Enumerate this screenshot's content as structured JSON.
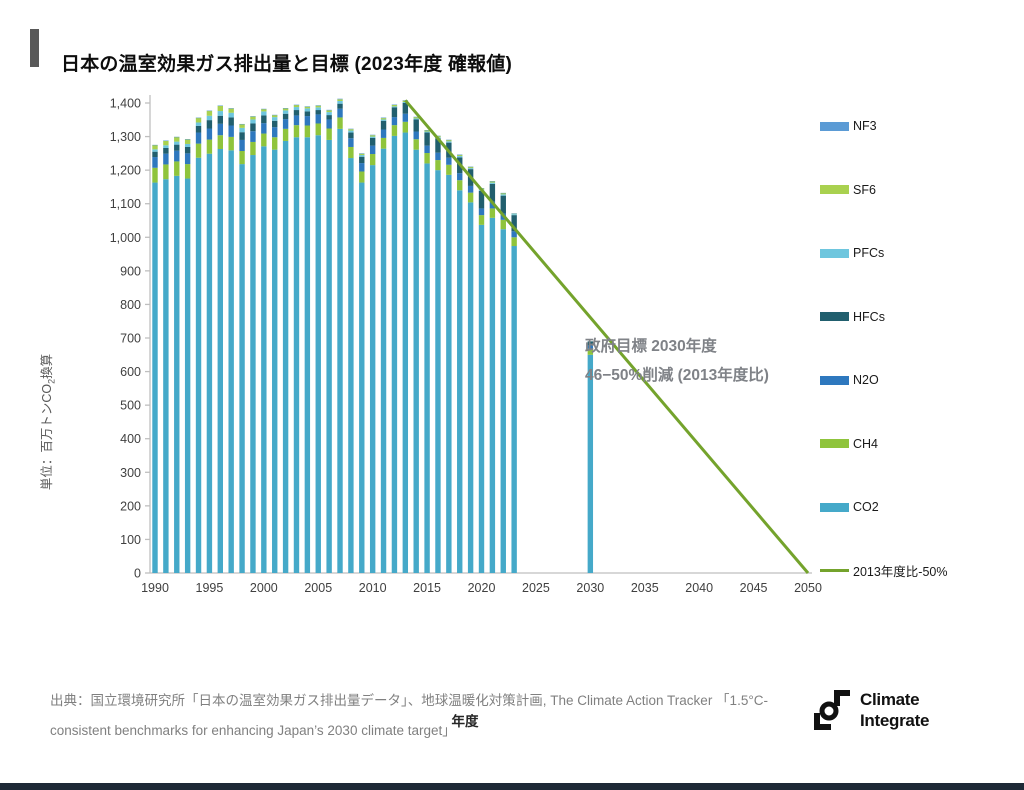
{
  "slide": {
    "title": "日本の温室効果ガス排出量と目標 (2023年度 確報値)",
    "source_line1": "出典：国立環境研究所「日本の温室効果ガス排出量データ」、地球温暖化対策計画, The Climate Action Tracker 「1.5°C-",
    "source_line2": "consistent benchmarks for enhancing Japan’s 2030 climate target」",
    "logo_line1": "Climate",
    "logo_line2": "Integrate"
  },
  "annotation": {
    "line1": "政府目標 2030年度",
    "line2": "46−50%削減 (2013年度比)"
  },
  "legend": [
    {
      "label": "NF3",
      "color": "#5b9bd5",
      "type": "bar"
    },
    {
      "label": "SF6",
      "color": "#a9d14f",
      "type": "bar"
    },
    {
      "label": "PFCs",
      "color": "#6ec6de",
      "type": "bar"
    },
    {
      "label": "HFCs",
      "color": "#215f6e",
      "type": "bar"
    },
    {
      "label": "N2O",
      "color": "#2e78be",
      "type": "bar"
    },
    {
      "label": "CH4",
      "color": "#8fc43c",
      "type": "bar"
    },
    {
      "label": "CO2",
      "color": "#45a9c9",
      "type": "bar"
    },
    {
      "label": "2013年度比-50%",
      "color": "#74a32c",
      "type": "line"
    }
  ],
  "chart_data": {
    "type": "bar",
    "stacked": true,
    "title": "日本の温室効果ガス排出量と目標 (2023年度 確報値)",
    "xlabel": "年度",
    "ylabel": "単位：百万トンCO2換算",
    "ylabel_parts": {
      "pre": "単位：百万トンCO",
      "sub": "2",
      "post": "換算"
    },
    "unit": "百万トンCO2換算",
    "ylim": [
      0,
      1400
    ],
    "grid": false,
    "legend_position": "right",
    "x_ticks": [
      1990,
      1995,
      2000,
      2005,
      2010,
      2015,
      2020,
      2025,
      2030,
      2035,
      2040,
      2045,
      2050
    ],
    "y_ticks": [
      0,
      100,
      200,
      300,
      400,
      500,
      600,
      700,
      800,
      900,
      1000,
      1100,
      1200,
      1300,
      1400
    ],
    "y_tick_labels": [
      "0",
      "100",
      "200",
      "300",
      "400",
      "500",
      "600",
      "700",
      "800",
      "900",
      "1,000",
      "1,100",
      "1,200",
      "1,300",
      "1,400"
    ],
    "colors": {
      "CO2": "#45a9c9",
      "CH4": "#8fc43c",
      "N2O": "#2e78be",
      "HFCs": "#215f6e",
      "PFCs": "#6ec6de",
      "SF6": "#a9d14f",
      "NF3": "#5b9bd5"
    },
    "axis_color": "#bfbfbf",
    "bars": {
      "columns": [
        "year",
        "CO2",
        "CH4",
        "N2O",
        "HFCs",
        "PFCs",
        "SF6",
        "NF3"
      ],
      "rows": [
        [
          1990,
          1163,
          44,
          32,
          16,
          7,
          13,
          0.3
        ],
        [
          1991,
          1173,
          44,
          32,
          17,
          8,
          14,
          0.3
        ],
        [
          1992,
          1183,
          43,
          32,
          18,
          9,
          14,
          0.3
        ],
        [
          1993,
          1175,
          43,
          32,
          19,
          9,
          14,
          0.4
        ],
        [
          1994,
          1237,
          42,
          33,
          20,
          10,
          14,
          0.4
        ],
        [
          1995,
          1249,
          42,
          33,
          25,
          13,
          15,
          0.4
        ],
        [
          1996,
          1263,
          41,
          34,
          24,
          14,
          16,
          0.5
        ],
        [
          1997,
          1259,
          40,
          34,
          24,
          14,
          13,
          0.5
        ],
        [
          1998,
          1218,
          39,
          33,
          23,
          13,
          11,
          0.6
        ],
        [
          1999,
          1245,
          39,
          32,
          23,
          12,
          9,
          0.7
        ],
        [
          2000,
          1271,
          38,
          31,
          23,
          12,
          7,
          0.8
        ],
        [
          2001,
          1261,
          37,
          30,
          19,
          11,
          6,
          0.9
        ],
        [
          2002,
          1287,
          36,
          29,
          16,
          10,
          6,
          1.0
        ],
        [
          2003,
          1298,
          36,
          29,
          16,
          9,
          6,
          1.1
        ],
        [
          2004,
          1298,
          35,
          28,
          14,
          9,
          5,
          1.3
        ],
        [
          2005,
          1304,
          35,
          27,
          13,
          8,
          5,
          1.5
        ],
        [
          2006,
          1290,
          34,
          27,
          13,
          9,
          5,
          1.7
        ],
        [
          2007,
          1323,
          34,
          26,
          15,
          8,
          5,
          1.8
        ],
        [
          2008,
          1236,
          33,
          26,
          17,
          6,
          4,
          1.5
        ],
        [
          2009,
          1163,
          33,
          25,
          19,
          5,
          4,
          1.4
        ],
        [
          2010,
          1215,
          33,
          25,
          23,
          4,
          4,
          1.5
        ],
        [
          2011,
          1264,
          32,
          25,
          26,
          4,
          4,
          1.7
        ],
        [
          2012,
          1302,
          32,
          24,
          29,
          3,
          4,
          1.5
        ],
        [
          2013,
          1312,
          32,
          24,
          32,
          3,
          4,
          1.4
        ],
        [
          2014,
          1261,
          31,
          23,
          36,
          3,
          4,
          1.1
        ],
        [
          2015,
          1220,
          31,
          22,
          39,
          3,
          4,
          0.6
        ],
        [
          2016,
          1200,
          30,
          22,
          43,
          3,
          4,
          0.6
        ],
        [
          2017,
          1186,
          30,
          21,
          45,
          4,
          4,
          0.6
        ],
        [
          2018,
          1140,
          30,
          21,
          47,
          4,
          4,
          0.5
        ],
        [
          2019,
          1104,
          29,
          20,
          50,
          3,
          4,
          0.4
        ],
        [
          2020,
          1037,
          29,
          20,
          52,
          4,
          4,
          0.4
        ],
        [
          2021,
          1058,
          28,
          20,
          53,
          4,
          4,
          0.4
        ],
        [
          2022,
          1024,
          28,
          19,
          53,
          4,
          4,
          0.3
        ],
        [
          2023,
          974,
          26,
          18,
          48,
          3,
          2,
          0.3
        ],
        [
          2030,
          650,
          18,
          10,
          12,
          0,
          0,
          0
        ]
      ]
    },
    "target_line": {
      "label": "2013年度比-50%",
      "color": "#74a32c",
      "points": [
        [
          2013,
          1408
        ],
        [
          2050,
          0
        ]
      ]
    }
  }
}
